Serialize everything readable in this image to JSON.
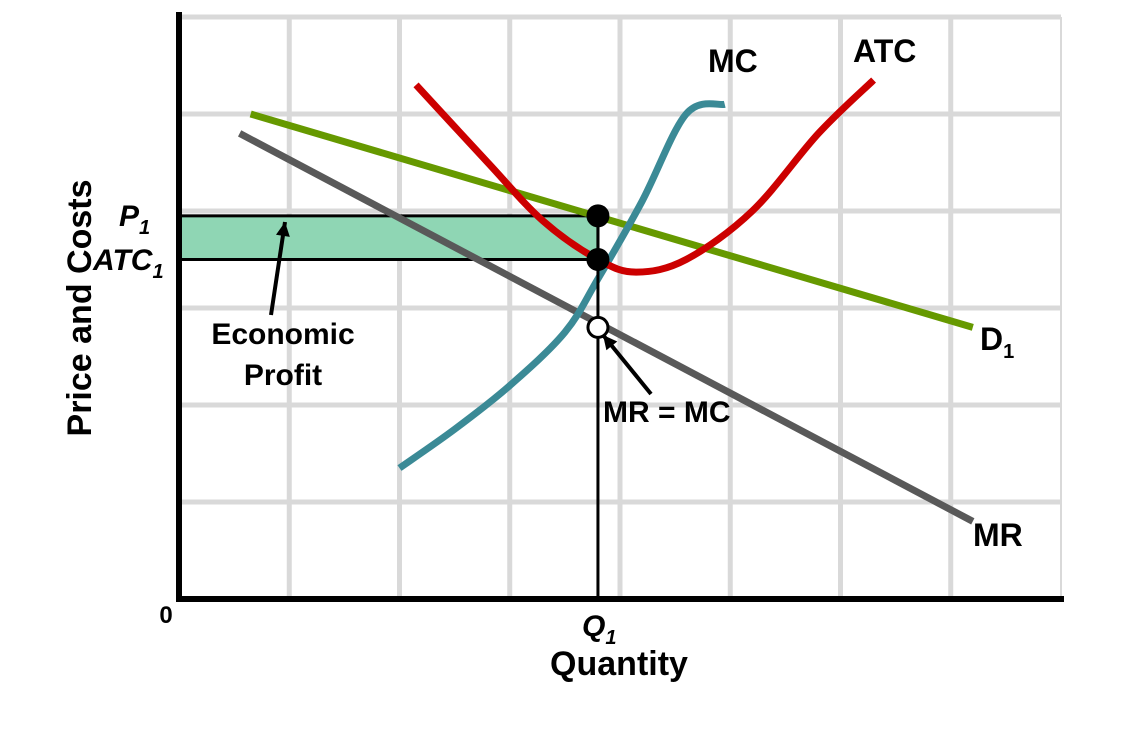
{
  "chart_data": {
    "type": "line",
    "xlabel": "Quantity",
    "ylabel": "Price and Costs",
    "origin_label": "0",
    "xlim": [
      0,
      8
    ],
    "ylim": [
      0,
      6
    ],
    "grid": true,
    "x_tick_labels": [
      {
        "label": "Q",
        "sub": "1",
        "x": 3.8
      }
    ],
    "y_tick_labels": [
      {
        "label": "P",
        "sub": "1",
        "y": 3.95
      },
      {
        "label": "ATC",
        "sub": "1",
        "y": 3.5
      }
    ],
    "series": [
      {
        "name": "D",
        "sub": "1",
        "color": "#669900",
        "points": [
          [
            0.65,
            5.0
          ],
          [
            7.2,
            2.8
          ]
        ]
      },
      {
        "name": "MR",
        "color": "#595959",
        "points": [
          [
            0.55,
            4.8
          ],
          [
            7.2,
            0.8
          ]
        ]
      },
      {
        "name": "MC",
        "color": "#3b8a96",
        "points": [
          [
            2.0,
            1.35
          ],
          [
            2.5,
            1.75
          ],
          [
            3.0,
            2.2
          ],
          [
            3.5,
            2.75
          ],
          [
            3.8,
            3.3
          ],
          [
            4.2,
            4.1
          ],
          [
            4.6,
            5.0
          ],
          [
            4.95,
            5.1
          ]
        ]
      },
      {
        "name": "ATC",
        "color": "#cc0000",
        "points": [
          [
            2.15,
            5.3
          ],
          [
            2.8,
            4.5
          ],
          [
            3.3,
            3.9
          ],
          [
            3.8,
            3.5
          ],
          [
            4.15,
            3.37
          ],
          [
            4.6,
            3.5
          ],
          [
            5.2,
            4.0
          ],
          [
            5.8,
            4.8
          ],
          [
            6.3,
            5.35
          ]
        ]
      }
    ],
    "markers": [
      {
        "x": 3.8,
        "y": 3.95,
        "style": "filled"
      },
      {
        "x": 3.8,
        "y": 3.5,
        "style": "filled"
      },
      {
        "x": 3.8,
        "y": 2.8,
        "style": "open"
      }
    ],
    "shaded_region": {
      "label_line1": "Economic",
      "label_line2": "Profit",
      "x": [
        0,
        3.8
      ],
      "y": [
        3.5,
        3.95
      ],
      "color": "#8fd6b4"
    },
    "annotations": [
      {
        "text": "MR = MC",
        "x": 3.8,
        "y": 2.8
      }
    ]
  }
}
